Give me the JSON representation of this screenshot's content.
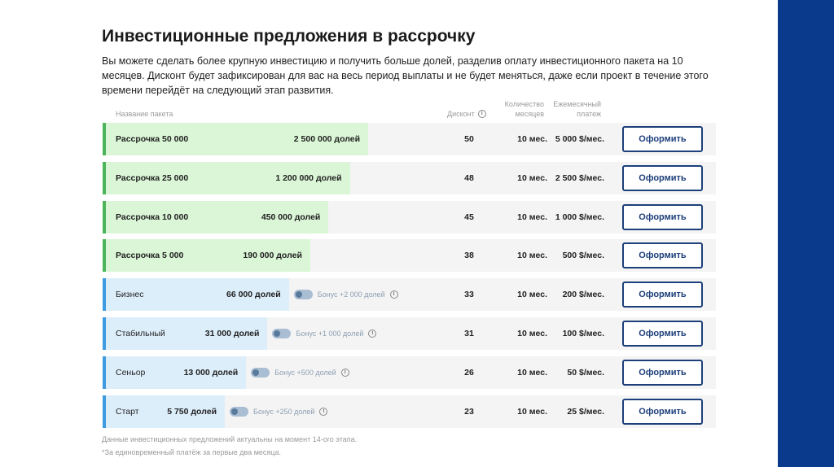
{
  "title": "Инвестиционные предложения в рассрочку",
  "description": "Вы можете сделать более крупную инвестицию и получить больше долей, разделив оплату инвестиционного пакета на 10 месяцев. Дисконт будет зафиксирован для вас на весь период выплаты и не будет меняться, даже если проект в течение этого времени перейдёт на следующий этап развития.",
  "headers": {
    "name": "Название пакета",
    "discount": "Дисконт",
    "months_line1": "Количество",
    "months_line2": "месяцев",
    "payment_line1": "Ежемесячный",
    "payment_line2": "платеж"
  },
  "button_label": "Оформить",
  "rows": [
    {
      "name": "Рассрочка 50 000",
      "shares": "2 500 000 долей",
      "bonus": "",
      "discount": "50",
      "months": "10 мес.",
      "payment": "5 000 $/мес.",
      "fill_pct": 43,
      "type": "green"
    },
    {
      "name": "Рассрочка 25 000",
      "shares": "1 200 000 долей",
      "bonus": "",
      "discount": "48",
      "months": "10 мес.",
      "payment": "2 500 $/мес.",
      "fill_pct": 40,
      "type": "green"
    },
    {
      "name": "Рассрочка 10 000",
      "shares": "450 000 долей",
      "bonus": "",
      "discount": "45",
      "months": "10 мес.",
      "payment": "1 000 $/мес.",
      "fill_pct": 36.5,
      "type": "green"
    },
    {
      "name": "Рассрочка 5 000",
      "shares": "190 000 долей",
      "bonus": "",
      "discount": "38",
      "months": "10 мес.",
      "payment": "500 $/мес.",
      "fill_pct": 33.5,
      "type": "green"
    },
    {
      "name": "Бизнес",
      "shares": "66 000 долей",
      "bonus": "Бонус +2 000 долей",
      "discount": "33",
      "months": "10 мес.",
      "payment": "200 $/мес.",
      "fill_pct": 30,
      "type": "blue"
    },
    {
      "name": "Стабильный",
      "shares": "31 000 долей",
      "bonus": "Бонус +1 000 долей",
      "discount": "31",
      "months": "10 мес.",
      "payment": "100 $/мес.",
      "fill_pct": 26.5,
      "type": "blue"
    },
    {
      "name": "Сеньор",
      "shares": "13 000 долей",
      "bonus": "Бонус +500 долей",
      "discount": "26",
      "months": "10 мес.",
      "payment": "50 $/мес.",
      "fill_pct": 23,
      "type": "blue"
    },
    {
      "name": "Старт",
      "shares": "5 750 долей",
      "bonus": "Бонус +250 долей",
      "discount": "23",
      "months": "10 мес.",
      "payment": "25 $/мес.",
      "fill_pct": 19.5,
      "type": "blue"
    }
  ],
  "footnote1": "Данные инвестиционных предложений актуальны на момент 14-ого этапа.",
  "footnote2": "*За единовременный платёж за первые два месяца.",
  "colors": {
    "accent_green": "#4cb55a",
    "fill_green": "#daf6d6",
    "accent_blue": "#3f9be0",
    "fill_blue": "#ddeefb",
    "button_navy": "#1d3f7a",
    "side_bar": "#0a3a8c"
  }
}
